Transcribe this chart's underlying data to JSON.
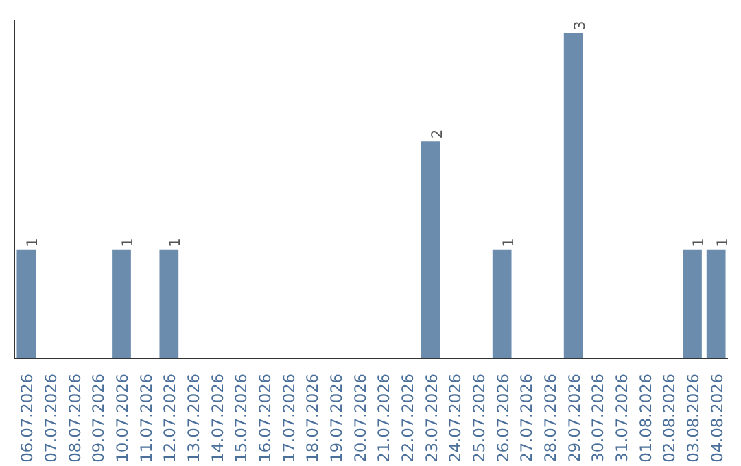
{
  "chart_data": {
    "type": "bar",
    "categories": [
      "06.07.2026",
      "07.07.2026",
      "08.07.2026",
      "09.07.2026",
      "10.07.2026",
      "11.07.2026",
      "12.07.2026",
      "13.07.2026",
      "14.07.2026",
      "15.07.2026",
      "16.07.2026",
      "17.07.2026",
      "18.07.2026",
      "19.07.2026",
      "20.07.2026",
      "21.07.2026",
      "22.07.2026",
      "23.07.2026",
      "24.07.2026",
      "25.07.2026",
      "26.07.2026",
      "27.07.2026",
      "28.07.2026",
      "29.07.2026",
      "30.07.2026",
      "31.07.2026",
      "01.08.2026",
      "02.08.2026",
      "03.08.2026",
      "04.08.2026"
    ],
    "values": [
      1,
      0,
      0,
      0,
      1,
      0,
      1,
      0,
      0,
      0,
      0,
      0,
      0,
      0,
      0,
      0,
      0,
      2,
      0,
      0,
      1,
      0,
      0,
      3,
      0,
      0,
      0,
      0,
      1,
      1
    ],
    "value_labels": [
      "1",
      null,
      null,
      null,
      "1",
      null,
      "1",
      null,
      null,
      null,
      null,
      null,
      null,
      null,
      null,
      null,
      null,
      "2",
      null,
      null,
      "1",
      null,
      null,
      "3",
      null,
      null,
      null,
      null,
      "1",
      "1"
    ],
    "color": "#6b8cad",
    "grid": false,
    "tick_labels": "x"
  }
}
